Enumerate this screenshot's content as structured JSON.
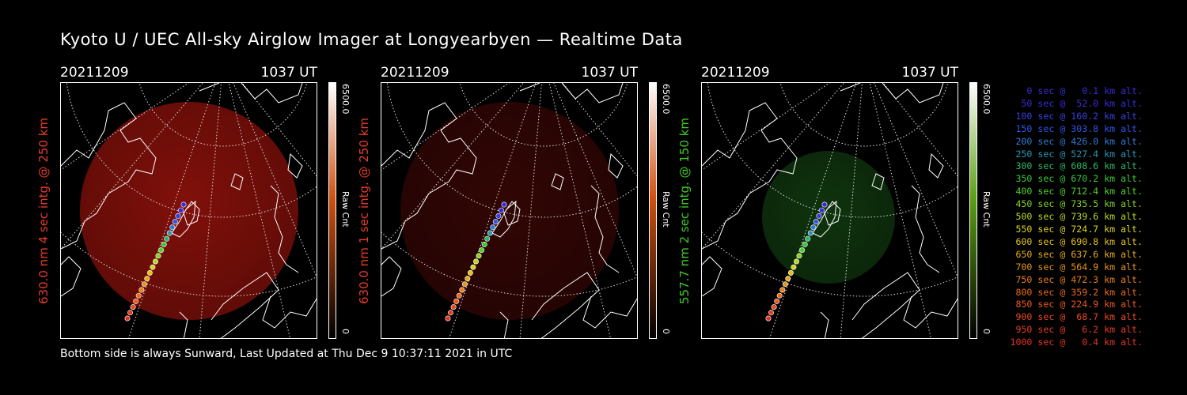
{
  "title": "Kyoto U / UEC All-sky Airglow Imager at Longyearbyen — Realtime Data",
  "footer": "Bottom side is always Sunward, Last Updated at Thu Dec  9 10:37:11 2021 in UTC",
  "colorbar": {
    "max_label": "6500.0",
    "min_label": "0",
    "unit_label": "Raw Cnt"
  },
  "panels": [
    {
      "date": "20211209",
      "time": "1037 UT",
      "side_label": "630.0 nm 4 sec intg. @ 250 km",
      "label_color": "#e53b2a",
      "glow_color": "#b3160e",
      "glow_opacity": 0.72,
      "bar_top": "#ffffff",
      "bar_mid": "#d05010",
      "bar_bottom": "#000000"
    },
    {
      "date": "20211209",
      "time": "1037 UT",
      "side_label": "630.0 nm 1 sec intg. @ 250 km",
      "label_color": "#e53b2a",
      "glow_color": "#3a0705",
      "glow_opacity": 0.85,
      "bar_top": "#ffffff",
      "bar_mid": "#d05010",
      "bar_bottom": "#000000"
    },
    {
      "date": "20211209",
      "time": "1037 UT",
      "side_label": "557.7 nm 2 sec intg. @ 150 km",
      "label_color": "#41c928",
      "glow_color": "#123d10",
      "glow_opacity": 0.85,
      "bar_top": "#ffffff",
      "bar_mid": "#5aa014",
      "bar_bottom": "#000000"
    }
  ],
  "legend": [
    {
      "text": "0 sec @   0.1 km alt.",
      "color": "#3a2bd8"
    },
    {
      "text": "50 sec @  52.0 km alt.",
      "color": "#3a2bd8"
    },
    {
      "text": "100 sec @ 160.2 km alt.",
      "color": "#3640e0"
    },
    {
      "text": "150 sec @ 303.8 km alt.",
      "color": "#2f55e8"
    },
    {
      "text": "200 sec @ 426.0 km alt.",
      "color": "#2f7ad8"
    },
    {
      "text": "250 sec @ 527.4 km alt.",
      "color": "#2a96b6"
    },
    {
      "text": "300 sec @ 608.6 km alt.",
      "color": "#2ab66a"
    },
    {
      "text": "350 sec @ 670.2 km alt.",
      "color": "#39c83a"
    },
    {
      "text": "400 sec @ 712.4 km alt.",
      "color": "#52d02a"
    },
    {
      "text": "450 sec @ 735.5 km alt.",
      "color": "#86d426"
    },
    {
      "text": "500 sec @ 739.6 km alt.",
      "color": "#b6d822"
    },
    {
      "text": "550 sec @ 724.7 km alt.",
      "color": "#d8d41e"
    },
    {
      "text": "600 sec @ 690.8 km alt.",
      "color": "#e2c21a"
    },
    {
      "text": "650 sec @ 637.6 km alt.",
      "color": "#e6aa18"
    },
    {
      "text": "700 sec @ 564.9 km alt.",
      "color": "#e89416"
    },
    {
      "text": "750 sec @ 472.3 km alt.",
      "color": "#ea7e16"
    },
    {
      "text": "800 sec @ 359.2 km alt.",
      "color": "#ec6a18"
    },
    {
      "text": "850 sec @ 224.9 km alt.",
      "color": "#ec5a1c"
    },
    {
      "text": "900 sec @  68.7 km alt.",
      "color": "#e84a20"
    },
    {
      "text": "950 sec @   6.2 km alt.",
      "color": "#e63c24"
    },
    {
      "text": "1000 sec @   0.4 km alt.",
      "color": "#e23226"
    }
  ]
}
